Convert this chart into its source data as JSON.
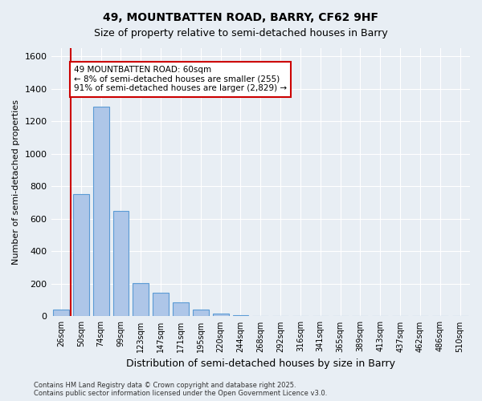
{
  "title1": "49, MOUNTBATTEN ROAD, BARRY, CF62 9HF",
  "title2": "Size of property relative to semi-detached houses in Barry",
  "xlabel": "Distribution of semi-detached houses by size in Barry",
  "ylabel": "Number of semi-detached properties",
  "annotation_title": "49 MOUNTBATTEN ROAD: 60sqm",
  "annotation_line1": "← 8% of semi-detached houses are smaller (255)",
  "annotation_line2": "91% of semi-detached houses are larger (2,829) →",
  "footer1": "Contains HM Land Registry data © Crown copyright and database right 2025.",
  "footer2": "Contains public sector information licensed under the Open Government Licence v3.0.",
  "bin_labels": [
    "26sqm",
    "50sqm",
    "74sqm",
    "99sqm",
    "123sqm",
    "147sqm",
    "171sqm",
    "195sqm",
    "220sqm",
    "244sqm",
    "268sqm",
    "292sqm",
    "316sqm",
    "341sqm",
    "365sqm",
    "389sqm",
    "413sqm",
    "437sqm",
    "462sqm",
    "486sqm",
    "510sqm"
  ],
  "values": [
    40,
    750,
    1290,
    650,
    205,
    145,
    85,
    40,
    15,
    5,
    2,
    0,
    0,
    0,
    0,
    0,
    0,
    0,
    0,
    0,
    0
  ],
  "bar_color": "#aec6e8",
  "bar_edge_color": "#5b9bd5",
  "line_color": "#cc0000",
  "annotation_box_color": "#cc0000",
  "bg_color": "#e8eef4",
  "plot_bg_color": "#e8eef4",
  "grid_color": "#ffffff",
  "redline_x": 0.5,
  "ylim": [
    0,
    1650
  ],
  "yticks": [
    0,
    200,
    400,
    600,
    800,
    1000,
    1200,
    1400,
    1600
  ]
}
